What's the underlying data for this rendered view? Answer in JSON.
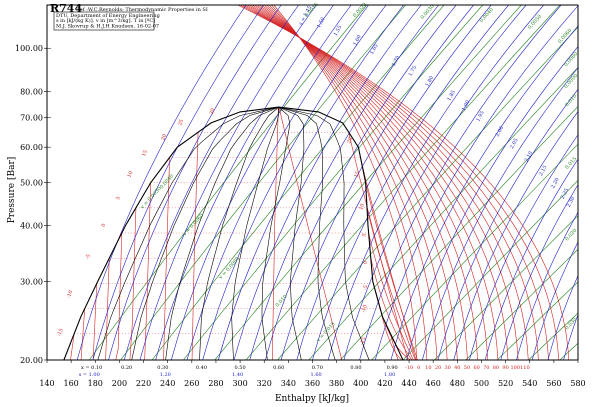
{
  "chart_data": {
    "type": "line",
    "title": "R744",
    "subtitle": "Ref :W.C.Reynolds: Thermodynamic Properties in SI",
    "info_lines": [
      "DTU, Department of Energy Engineering",
      "s in [kJ/(kg K)]. v in [m^3/kg]. T in [ºC]",
      "M.J. Skovrup & H.J.H Knudsen. 16-02-07"
    ],
    "xlabel": "Enthalpy [kJ/kg]",
    "ylabel": "Pressure [Bar]",
    "xlim": [
      140,
      580
    ],
    "ylim": [
      20,
      125
    ],
    "y_scale": "log",
    "x_ticks": [
      "140",
      "160",
      "180",
      "200",
      "220",
      "240",
      "260",
      "280",
      "300",
      "320",
      "340",
      "360",
      "380",
      "400",
      "420",
      "440",
      "460",
      "480",
      "500",
      "520",
      "540",
      "560",
      "580"
    ],
    "y_ticks": [
      "20.00",
      "30.00",
      "40.00",
      "50.00",
      "60.00",
      "70.00",
      "80.00",
      "100.00"
    ],
    "critical_point": {
      "h": 332,
      "p": 73.8
    },
    "saturation_liquid": [
      [
        154,
        20
      ],
      [
        168,
        25
      ],
      [
        182,
        30
      ],
      [
        205,
        40
      ],
      [
        226,
        50
      ],
      [
        248,
        60
      ],
      [
        276,
        68
      ],
      [
        300,
        72
      ],
      [
        332,
        73.8
      ]
    ],
    "saturation_vapor": [
      [
        332,
        73.8
      ],
      [
        365,
        72
      ],
      [
        385,
        68
      ],
      [
        398,
        60
      ],
      [
        404,
        50
      ],
      [
        406,
        40
      ],
      [
        410,
        30
      ],
      [
        418,
        25
      ],
      [
        435,
        20
      ]
    ],
    "quality_bottom_labels": [
      {
        "h": 177,
        "text": "x = 0.10"
      },
      {
        "h": 206,
        "text": "0.20"
      },
      {
        "h": 236,
        "text": "0.30"
      },
      {
        "h": 268,
        "text": "0.40"
      },
      {
        "h": 300,
        "text": "0.50"
      },
      {
        "h": 332,
        "text": "0.60"
      },
      {
        "h": 364,
        "text": "0.70"
      },
      {
        "h": 396,
        "text": "0.80"
      },
      {
        "h": 426,
        "text": "0.90"
      }
    ],
    "entropy_bottom_labels": [
      {
        "h": 175,
        "text": "s = 1.00"
      },
      {
        "h": 238,
        "text": "1.20"
      },
      {
        "h": 298,
        "text": "1.40"
      },
      {
        "h": 363,
        "text": "1.60"
      },
      {
        "h": 424,
        "text": "1.80"
      }
    ],
    "entropy_top_labels": [
      {
        "h": 355,
        "text": "s = 1.45"
      },
      {
        "h": 368,
        "text": "1.50"
      },
      {
        "h": 382,
        "text": "1.55"
      },
      {
        "h": 398,
        "text": "1.60"
      },
      {
        "h": 412,
        "text": "1.65"
      },
      {
        "h": 430,
        "text": "1.70"
      },
      {
        "h": 444,
        "text": "1.75"
      },
      {
        "h": 458,
        "text": "1.80"
      },
      {
        "h": 476,
        "text": "1.85"
      },
      {
        "h": 488,
        "text": "1.90"
      },
      {
        "h": 500,
        "text": "1.95"
      },
      {
        "h": 516,
        "text": "2.00"
      },
      {
        "h": 528,
        "text": "2.05"
      },
      {
        "h": 540,
        "text": "2.10"
      },
      {
        "h": 552,
        "text": "2.15"
      },
      {
        "h": 562,
        "text": "2.20"
      },
      {
        "h": 570,
        "text": "2.25"
      },
      {
        "h": 576,
        "text": "2.30"
      }
    ],
    "temperature_bottom_labels": [
      {
        "h": 440,
        "text": "-10"
      },
      {
        "h": 448,
        "text": "0"
      },
      {
        "h": 456,
        "text": "10"
      },
      {
        "h": 464,
        "text": "20"
      },
      {
        "h": 472,
        "text": "30"
      },
      {
        "h": 480,
        "text": "40"
      },
      {
        "h": 488,
        "text": "50"
      },
      {
        "h": 496,
        "text": "60"
      },
      {
        "h": 504,
        "text": "70"
      },
      {
        "h": 512,
        "text": "80"
      },
      {
        "h": 520,
        "text": "90"
      },
      {
        "h": 528,
        "text": "100"
      },
      {
        "h": 536,
        "text": "110"
      }
    ],
    "temperature_liquid_labels": [
      {
        "h": 152,
        "p": 23,
        "text": "-15"
      },
      {
        "h": 160,
        "p": 28,
        "text": "-10"
      },
      {
        "h": 175,
        "p": 34,
        "text": "-5"
      },
      {
        "h": 188,
        "p": 40,
        "text": "0"
      },
      {
        "h": 200,
        "p": 46,
        "text": "5"
      },
      {
        "h": 210,
        "p": 52,
        "text": "10"
      },
      {
        "h": 222,
        "p": 58,
        "text": "15"
      },
      {
        "h": 238,
        "p": 63,
        "text": "20"
      },
      {
        "h": 252,
        "p": 68,
        "text": "25"
      },
      {
        "h": 278,
        "p": 72,
        "text": "30"
      }
    ],
    "temperature_vapor_labels": [
      {
        "h": 392,
        "p": 62,
        "text": "20"
      },
      {
        "h": 398,
        "p": 52,
        "text": "15"
      },
      {
        "h": 402,
        "p": 44,
        "text": "10"
      },
      {
        "h": 404,
        "p": 38,
        "text": "5"
      },
      {
        "h": 405,
        "p": 33,
        "text": "0"
      },
      {
        "h": 405,
        "p": 29,
        "text": "-5"
      },
      {
        "h": 404,
        "p": 26,
        "text": "-10"
      },
      {
        "h": 403,
        "p": 22,
        "text": "-15"
      }
    ],
    "volume_labels": [
      {
        "h": 227,
        "p": 46,
        "text": "v = 0.0030"
      },
      {
        "h": 240,
        "p": 50,
        "text": "0.0040"
      },
      {
        "h": 262,
        "p": 40,
        "text": "v = 0.0060"
      },
      {
        "h": 292,
        "p": 32,
        "text": "v = 0.0080"
      },
      {
        "h": 335,
        "p": 27,
        "text": "0.010"
      },
      {
        "h": 372,
        "p": 23,
        "text": "v = 0.015"
      },
      {
        "h": 360,
        "p": 123,
        "text": "0.0015"
      },
      {
        "h": 400,
        "p": 123,
        "text": "0.0020"
      },
      {
        "h": 456,
        "p": 120,
        "text": "0.0030"
      },
      {
        "h": 505,
        "p": 118,
        "text": "0.0040"
      },
      {
        "h": 545,
        "p": 114,
        "text": "0.0050"
      },
      {
        "h": 570,
        "p": 106,
        "text": "0.0060"
      },
      {
        "h": 575,
        "p": 94,
        "text": "0.0080"
      },
      {
        "h": 575,
        "p": 84,
        "text": "0.0090"
      },
      {
        "h": 575,
        "p": 76,
        "text": "0.010"
      },
      {
        "h": 575,
        "p": 55,
        "text": "0.015"
      },
      {
        "h": 575,
        "p": 38,
        "text": "0.020"
      },
      {
        "h": 575,
        "p": 24,
        "text": "0.030"
      }
    ],
    "colors": {
      "saturation": "#000000",
      "temperature": "#d42020",
      "entropy": "#2020c8",
      "volume": "#208020",
      "quality": "#000000"
    }
  }
}
